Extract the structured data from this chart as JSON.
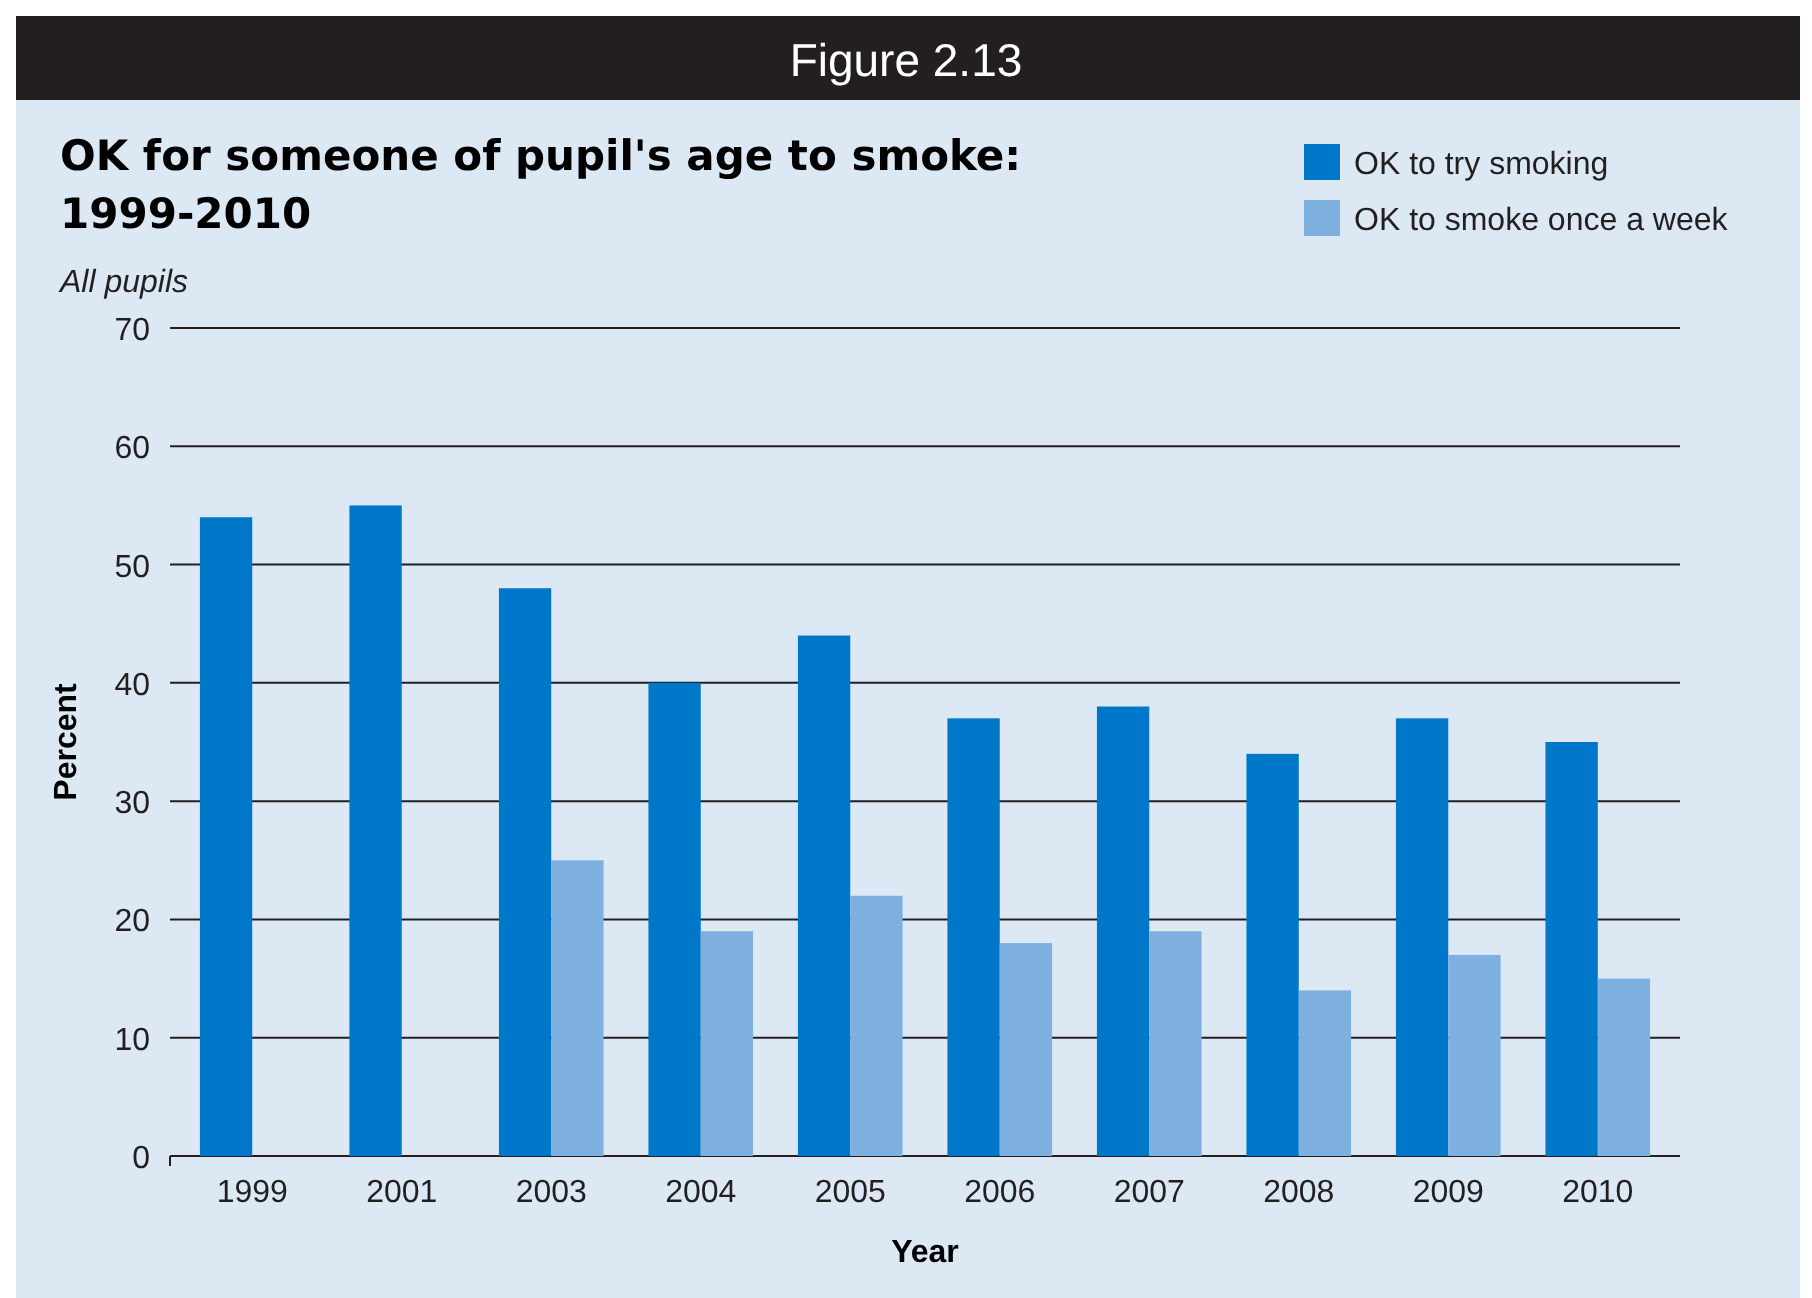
{
  "chart_data": {
    "type": "bar",
    "title": "Figure 2.13",
    "subtitle": "OK for someone of pupil's age to smoke: 1999-2010",
    "annotations": [
      "All pupils"
    ],
    "xlabel": "Year",
    "ylabel": "Percent",
    "categories": [
      "1999",
      "2001",
      "2003",
      "2004",
      "2005",
      "2006",
      "2007",
      "2008",
      "2009",
      "2010"
    ],
    "series": [
      {
        "name": "OK to try smoking",
        "color": "#0077c8",
        "values": [
          54,
          55,
          48,
          40,
          44,
          37,
          38,
          34,
          37,
          35
        ]
      },
      {
        "name": "OK to smoke once a week",
        "color": "#7eb0e0",
        "values": [
          null,
          null,
          25,
          19,
          22,
          18,
          19,
          14,
          17,
          15
        ]
      }
    ],
    "ylim": [
      0,
      70
    ],
    "yticks": [
      0,
      10,
      20,
      30,
      40,
      50,
      60,
      70
    ],
    "grid": "y",
    "legend": "top right"
  }
}
